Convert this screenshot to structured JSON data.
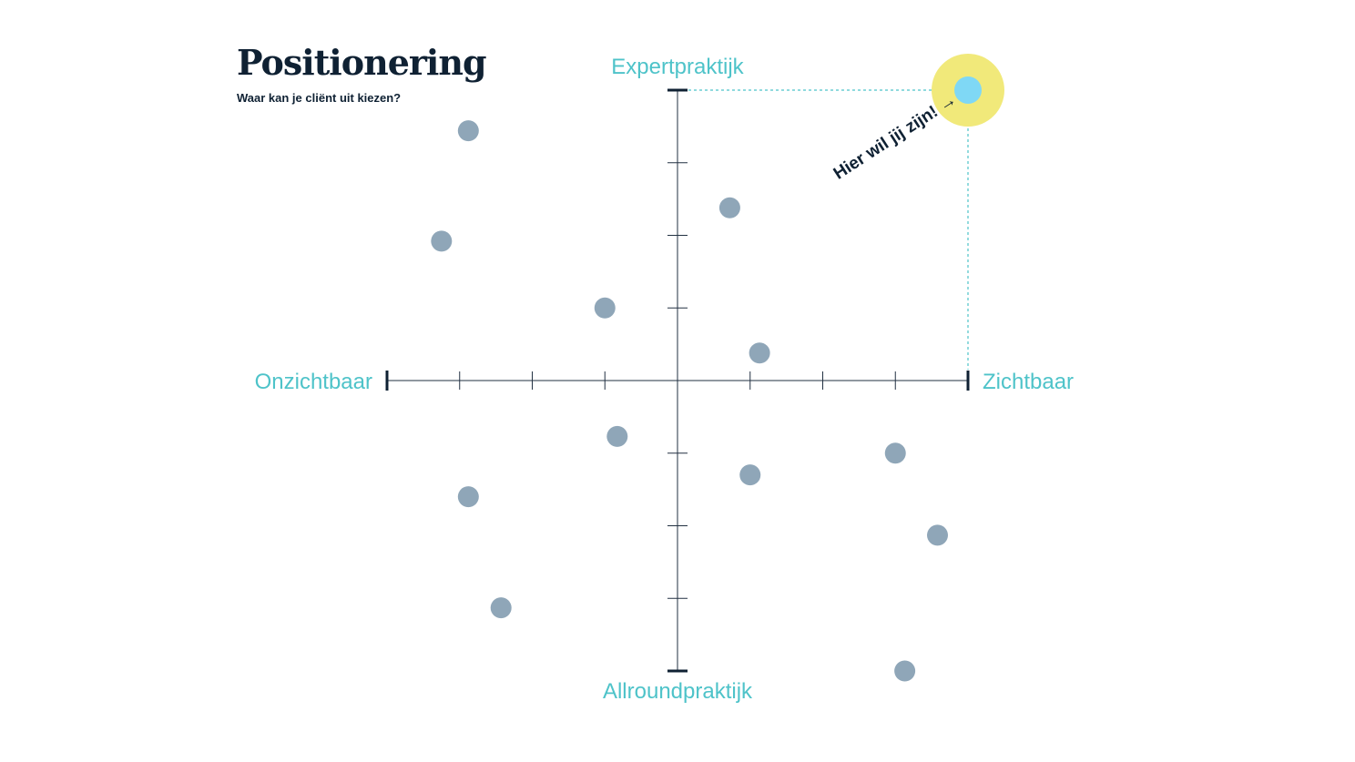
{
  "header": {
    "title": "Positionering",
    "subtitle": "Waar kan je cliënt uit kiezen?"
  },
  "chart_data": {
    "type": "scatter",
    "axes": {
      "top_label": "Expertpraktijk",
      "bottom_label": "Allroundpraktijk",
      "left_label": "Onzichtbaar",
      "right_label": "Zichtbaar"
    },
    "xlim": [
      -4,
      4
    ],
    "ylim": [
      -4,
      4
    ],
    "ticks": [
      -4,
      -3,
      -2,
      -1,
      0,
      1,
      2,
      3,
      4
    ],
    "grid": false,
    "series": [
      {
        "points": [
          {
            "x": -2.88,
            "y": 3.44
          },
          {
            "x": -3.25,
            "y": 1.92
          },
          {
            "x": -1.0,
            "y": 1.0
          },
          {
            "x": 0.72,
            "y": 2.38
          },
          {
            "x": 1.13,
            "y": 0.38
          },
          {
            "x": -0.83,
            "y": -0.77
          },
          {
            "x": -2.88,
            "y": -1.6
          },
          {
            "x": -2.43,
            "y": -3.13
          },
          {
            "x": 1.0,
            "y": -1.3
          },
          {
            "x": 3.0,
            "y": -1.0
          },
          {
            "x": 3.58,
            "y": -2.13
          },
          {
            "x": 3.13,
            "y": -4.0
          }
        ]
      }
    ],
    "target": {
      "x": 4,
      "y": 4,
      "annotation": "Hier wil jij zijn! →"
    },
    "colors": {
      "points": "#8fa6b8",
      "axis": "#223142",
      "axis_end_ticks": "#0f2133",
      "axis_labels": "#4ec3c9",
      "target_fill": "#7fd8f5",
      "target_halo": "#f1e97a",
      "guide_lines": "#4ec3c9"
    }
  }
}
